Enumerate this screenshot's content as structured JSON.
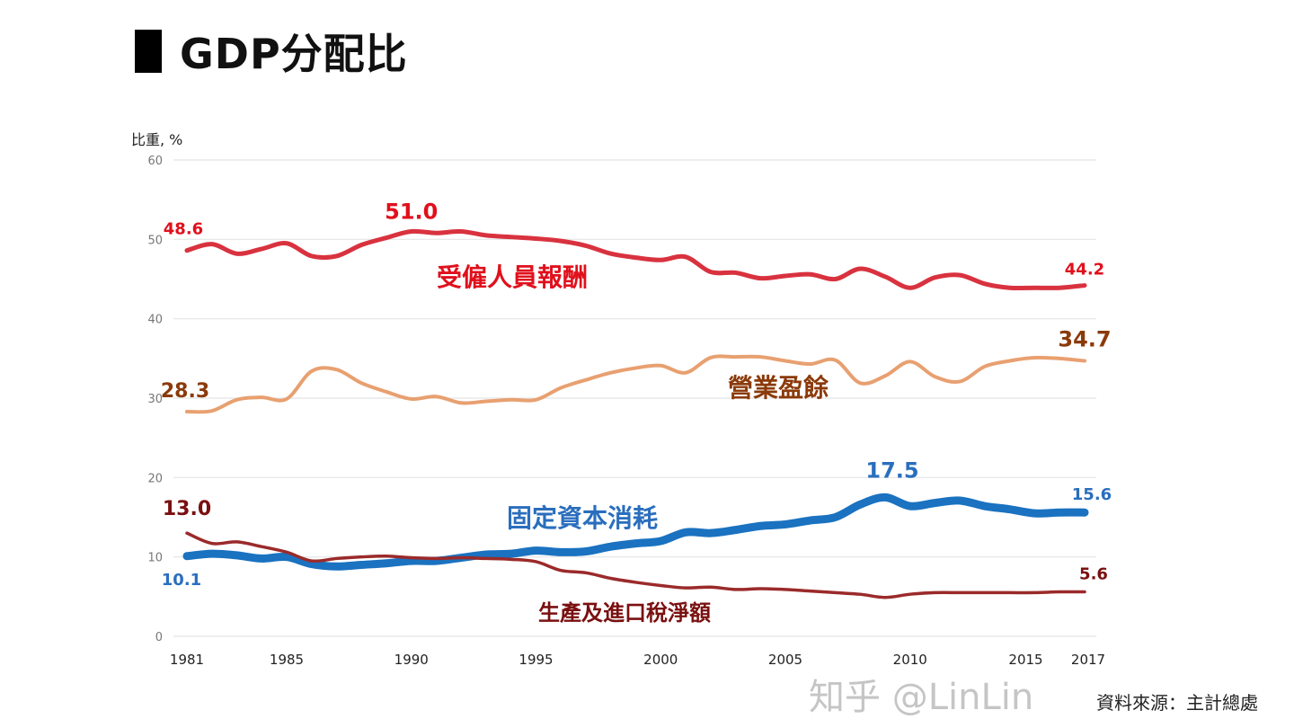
{
  "header": {
    "title": "GDP分配比"
  },
  "source": "資料來源：主計總處",
  "watermark": "知乎 @LinLin",
  "chart_data": {
    "type": "line",
    "title": "GDP分配比",
    "ylabel": "比重, %",
    "xlabel": "",
    "ylim": [
      0,
      60
    ],
    "yticks": [
      0,
      10,
      20,
      30,
      40,
      50,
      60
    ],
    "xticks": [
      1981,
      1985,
      1990,
      1995,
      2000,
      2005,
      2010,
      2015,
      2017
    ],
    "grid": true,
    "legend": "none (inline labels)",
    "x": [
      1981,
      1982,
      1983,
      1984,
      1985,
      1986,
      1987,
      1988,
      1989,
      1990,
      1991,
      1992,
      1993,
      1994,
      1995,
      1996,
      1997,
      1998,
      1999,
      2000,
      2001,
      2002,
      2003,
      2004,
      2005,
      2006,
      2007,
      2008,
      2009,
      2010,
      2011,
      2012,
      2013,
      2014,
      2015,
      2016,
      2017
    ],
    "series": [
      {
        "name": "受僱人員報酬",
        "color": "#d9323f",
        "label_color": "#e0101c",
        "values": [
          48.6,
          49.4,
          48.2,
          48.8,
          49.5,
          47.9,
          47.9,
          49.3,
          50.2,
          51.0,
          50.8,
          51.0,
          50.5,
          50.3,
          50.1,
          49.8,
          49.2,
          48.2,
          47.7,
          47.4,
          47.8,
          45.9,
          45.8,
          45.1,
          45.4,
          45.6,
          45.0,
          46.3,
          45.3,
          43.9,
          45.2,
          45.5,
          44.4,
          43.9,
          43.9,
          43.9,
          44.2
        ],
        "annotations": [
          {
            "x": 1981,
            "text": "48.6"
          },
          {
            "x": 1990,
            "text": "51.0"
          },
          {
            "x": 2017,
            "text": "44.2"
          }
        ]
      },
      {
        "name": "營業盈餘",
        "color": "#e8a070",
        "label_color": "#8b3a0a",
        "values": [
          28.3,
          28.4,
          29.8,
          30.1,
          29.9,
          33.4,
          33.6,
          31.9,
          30.8,
          29.9,
          30.2,
          29.4,
          29.6,
          29.8,
          29.8,
          31.3,
          32.3,
          33.2,
          33.8,
          34.1,
          33.2,
          35.1,
          35.2,
          35.2,
          34.7,
          34.3,
          34.8,
          31.9,
          32.8,
          34.6,
          32.7,
          32.1,
          34.0,
          34.7,
          35.1,
          35.0,
          34.7
        ],
        "annotations": [
          {
            "x": 1981,
            "text": "28.3"
          },
          {
            "x": 2017,
            "text": "34.7"
          }
        ]
      },
      {
        "name": "固定資本消耗",
        "color": "#1a72c0",
        "label_color": "#2a6ebd",
        "values": [
          10.1,
          10.4,
          10.2,
          9.8,
          10.0,
          9.1,
          8.8,
          9.0,
          9.2,
          9.5,
          9.5,
          9.9,
          10.3,
          10.4,
          10.8,
          10.6,
          10.7,
          11.3,
          11.7,
          12.0,
          13.1,
          13.0,
          13.4,
          13.9,
          14.1,
          14.6,
          15.0,
          16.6,
          17.5,
          16.4,
          16.8,
          17.1,
          16.4,
          16.0,
          15.5,
          15.6,
          15.6
        ],
        "annotations": [
          {
            "x": 1981,
            "text": "10.1"
          },
          {
            "x": 2009,
            "text": "17.5"
          },
          {
            "x": 2017,
            "text": "15.6"
          }
        ]
      },
      {
        "name": "生產及進口稅淨額",
        "color": "#9b2a2a",
        "label_color": "#7a1010",
        "values": [
          13.0,
          11.7,
          11.9,
          11.3,
          10.6,
          9.5,
          9.8,
          10.0,
          10.1,
          9.9,
          9.8,
          9.9,
          9.8,
          9.7,
          9.4,
          8.3,
          8.0,
          7.3,
          6.8,
          6.4,
          6.1,
          6.2,
          5.9,
          6.0,
          5.9,
          5.7,
          5.5,
          5.3,
          4.9,
          5.3,
          5.5,
          5.5,
          5.5,
          5.5,
          5.5,
          5.6,
          5.6
        ],
        "annotations": [
          {
            "x": 1981,
            "text": "13.0"
          },
          {
            "x": 2017,
            "text": "5.6"
          }
        ]
      }
    ]
  }
}
